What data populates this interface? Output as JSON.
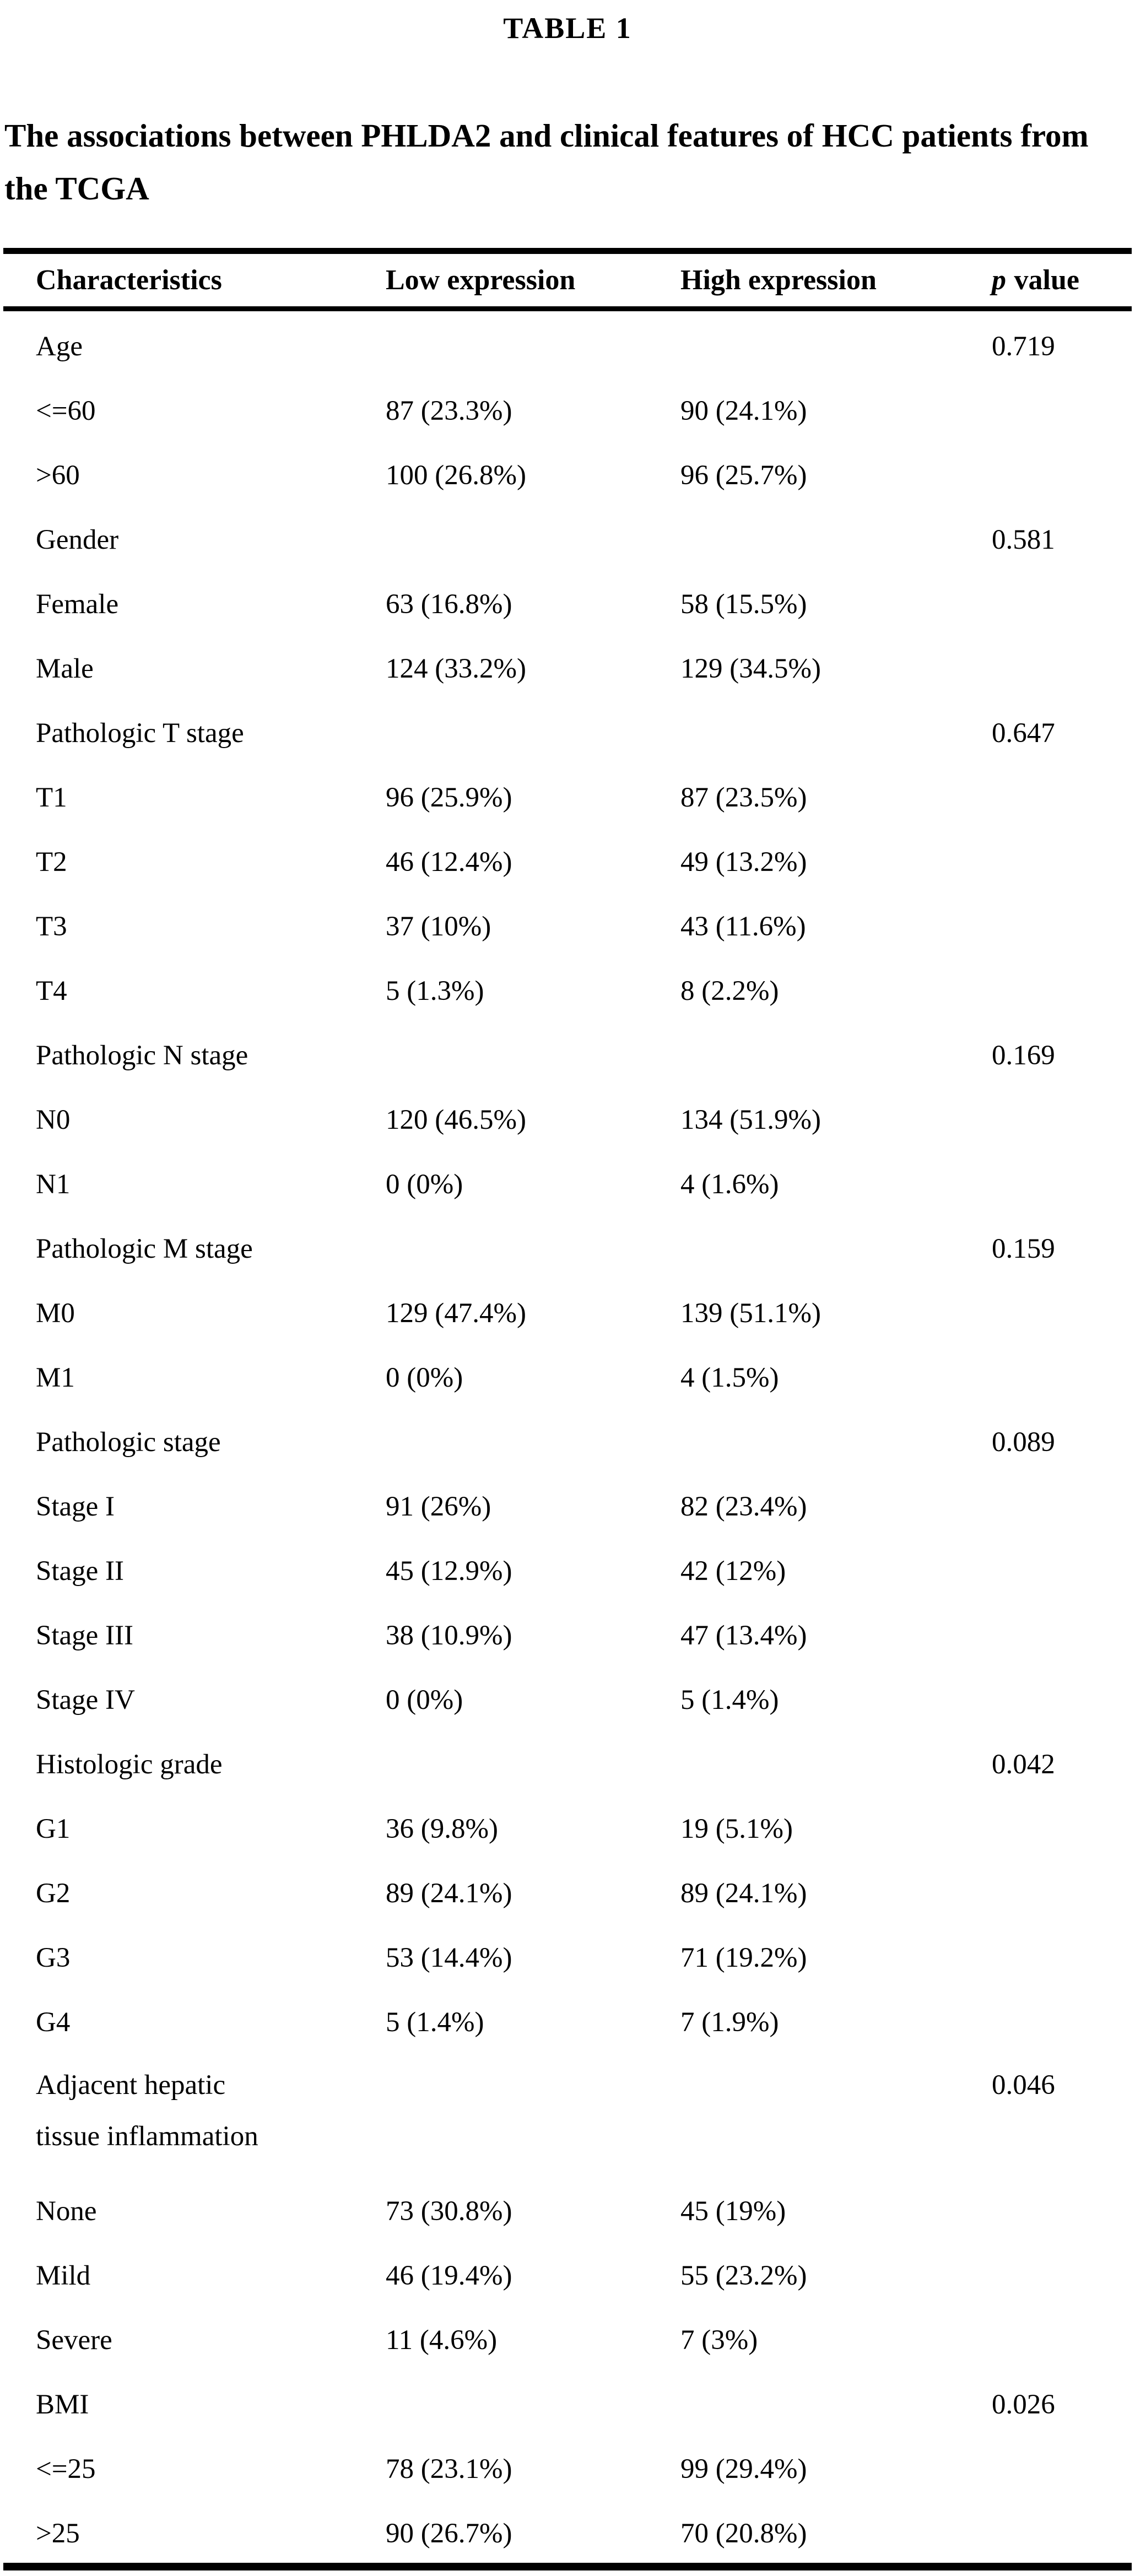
{
  "colors": {
    "text": "#000000",
    "background": "#ffffff"
  },
  "title": "TABLE 1",
  "caption": "The associations between PHLDA2 and clinical features of HCC patients from the TCGA",
  "table": {
    "header": {
      "characteristics": "Characteristics",
      "low_expression": "Low expression",
      "high_expression": "High expression",
      "p_italic": "p",
      "p_rest": "value"
    },
    "rows": [
      {
        "label": "Age",
        "low": "",
        "high": "",
        "p": "0.719"
      },
      {
        "label": "<=60",
        "low": "87 (23.3%)",
        "high": "90 (24.1%)",
        "p": ""
      },
      {
        "label": ">60",
        "low": "100 (26.8%)",
        "high": "96 (25.7%)",
        "p": ""
      },
      {
        "label": "Gender",
        "low": "",
        "high": "",
        "p": "0.581"
      },
      {
        "label": "Female",
        "low": "63 (16.8%)",
        "high": "58 (15.5%)",
        "p": ""
      },
      {
        "label": "Male",
        "low": "124 (33.2%)",
        "high": "129 (34.5%)",
        "p": ""
      },
      {
        "label": "Pathologic T stage",
        "low": "",
        "high": "",
        "p": "0.647"
      },
      {
        "label": "T1",
        "low": "96 (25.9%)",
        "high": "87 (23.5%)",
        "p": ""
      },
      {
        "label": "T2",
        "low": "46 (12.4%)",
        "high": "49 (13.2%)",
        "p": ""
      },
      {
        "label": "T3",
        "low": "37 (10%)",
        "high": "43 (11.6%)",
        "p": ""
      },
      {
        "label": "T4",
        "low": "5 (1.3%)",
        "high": "8 (2.2%)",
        "p": ""
      },
      {
        "label": "Pathologic N stage",
        "low": "",
        "high": "",
        "p": "0.169"
      },
      {
        "label": "N0",
        "low": "120 (46.5%)",
        "high": "134 (51.9%)",
        "p": ""
      },
      {
        "label": "N1",
        "low": "0 (0%)",
        "high": "4 (1.6%)",
        "p": ""
      },
      {
        "label": "Pathologic M stage",
        "low": "",
        "high": "",
        "p": "0.159"
      },
      {
        "label": "M0",
        "low": "129 (47.4%)",
        "high": "139 (51.1%)",
        "p": ""
      },
      {
        "label": "M1",
        "low": "0 (0%)",
        "high": "4 (1.5%)",
        "p": ""
      },
      {
        "label": "Pathologic stage",
        "low": "",
        "high": "",
        "p": "0.089"
      },
      {
        "label": "Stage I",
        "low": "91 (26%)",
        "high": "82 (23.4%)",
        "p": ""
      },
      {
        "label": "Stage II",
        "low": "45 (12.9%)",
        "high": "42 (12%)",
        "p": ""
      },
      {
        "label": "Stage III",
        "low": "38 (10.9%)",
        "high": "47 (13.4%)",
        "p": ""
      },
      {
        "label": "Stage IV",
        "low": "0 (0%)",
        "high": "5 (1.4%)",
        "p": ""
      },
      {
        "label": "Histologic grade",
        "low": "",
        "high": "",
        "p": "0.042"
      },
      {
        "label": "G1",
        "low": "36 (9.8%)",
        "high": "19 (5.1%)",
        "p": ""
      },
      {
        "label": "G2",
        "low": "89 (24.1%)",
        "high": "89 (24.1%)",
        "p": ""
      },
      {
        "label": "G3",
        "low": "53 (14.4%)",
        "high": "71 (19.2%)",
        "p": ""
      },
      {
        "label": "G4",
        "low": "5 (1.4%)",
        "high": "7 (1.9%)",
        "p": ""
      },
      {
        "label": "Adjacent hepatic tissue inflammation",
        "low": "",
        "high": "",
        "p": "0.046"
      },
      {
        "label": "None",
        "low": "73 (30.8%)",
        "high": "45 (19%)",
        "p": ""
      },
      {
        "label": "Mild",
        "low": "46 (19.4%)",
        "high": "55 (23.2%)",
        "p": ""
      },
      {
        "label": "Severe",
        "low": "11 (4.6%)",
        "high": "7 (3%)",
        "p": ""
      },
      {
        "label": "BMI",
        "low": "",
        "high": "",
        "p": "0.026"
      },
      {
        "label": "<=25",
        "low": "78 (23.1%)",
        "high": "99 (29.4%)",
        "p": ""
      },
      {
        "label": ">25",
        "low": "90 (26.7%)",
        "high": "70 (20.8%)",
        "p": ""
      }
    ]
  }
}
